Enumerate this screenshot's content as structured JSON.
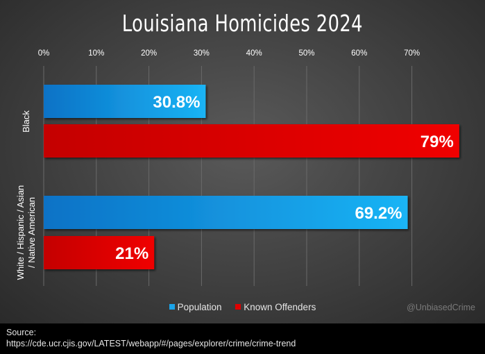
{
  "chart_data": {
    "type": "bar",
    "orientation": "horizontal",
    "title": "Louisiana Homicides 2024",
    "categories": [
      "Black",
      "White / Hispanic / Asian / Native American"
    ],
    "series": [
      {
        "name": "Population",
        "values": [
          30.8,
          69.2
        ],
        "labels": [
          "30.8%",
          "69.2%"
        ],
        "color": "#1aa3e8"
      },
      {
        "name": "Known Offenders",
        "values": [
          79,
          21
        ],
        "labels": [
          "79%",
          "21%"
        ],
        "color": "#e00000"
      }
    ],
    "x_ticks": [
      "0%",
      "10%",
      "20%",
      "30%",
      "40%",
      "50%",
      "60%",
      "70%"
    ],
    "xlim": [
      0,
      79
    ],
    "x_axis_position": "top",
    "grid": true,
    "legend_position": "bottom"
  },
  "watermark": "@UnbiasedCrime",
  "source": {
    "label": "Source:",
    "url": "https://cde.ucr.cjis.gov/LATEST/webapp/#/pages/explorer/crime/crime-trend"
  }
}
